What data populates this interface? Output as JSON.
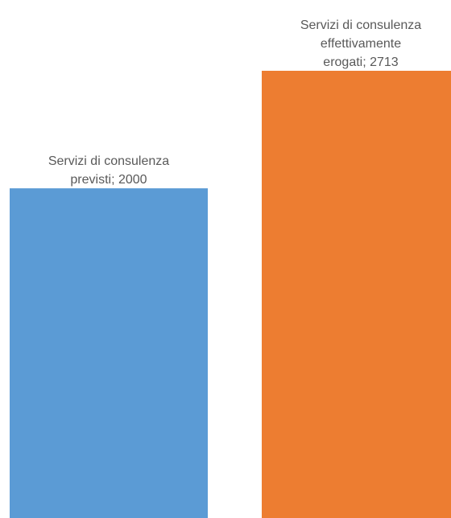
{
  "chart_data": {
    "type": "bar",
    "categories": [
      "Servizi di consulenza previsti",
      "Servizi di consulenza effettivamente erogati"
    ],
    "values": [
      2000,
      2713
    ],
    "ylim": [
      0,
      2713
    ],
    "grid": false,
    "legend": "none",
    "data_labels": [
      [
        "Servizi di consulenza",
        "previsti; 2000"
      ],
      [
        "Servizi di consulenza",
        "effettivamente",
        "erogati; 2713"
      ]
    ],
    "colors": [
      "#5b9bd5",
      "#ed7d31"
    ],
    "label_color": "#595959"
  }
}
